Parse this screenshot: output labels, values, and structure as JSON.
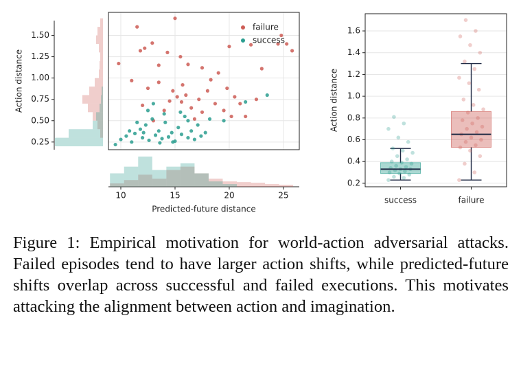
{
  "chart_data": [
    {
      "type": "scatter",
      "xlabel": "Predicted-future distance",
      "ylabel": "Action distance",
      "xlim": [
        8.86,
        26.46
      ],
      "ylim": [
        0.16,
        1.77
      ],
      "xticks": [
        10,
        15,
        20,
        25
      ],
      "yticks": [
        0.25,
        {
          "value": 0.5,
          "label": "0.50"
        },
        0.75,
        {
          "value": 1.0,
          "label": "1.00"
        },
        1.25,
        {
          "value": 1.5,
          "label": "1.50"
        }
      ],
      "grid": true,
      "legend": "upper right",
      "series": [
        {
          "name": "failure",
          "color": "#cd5c55",
          "x": [
            9.8,
            11.5,
            11.8,
            12.2,
            12.9,
            13.5,
            14.3,
            15.0,
            15.5,
            16.2,
            17.5,
            19.0,
            20.0,
            22.0,
            23.0,
            24.5,
            25.8,
            25.3,
            24.8,
            11.0,
            12.5,
            13.5,
            14.8,
            15.2,
            15.6,
            16.0,
            16.5,
            17.2,
            18.0,
            18.7,
            19.5,
            20.5,
            21.5,
            22.5,
            17.5,
            14.0,
            13.0,
            12.0,
            16.8,
            15.7,
            18.3,
            19.8,
            21.0,
            14.5,
            20.2
          ],
          "values": [
            1.17,
            1.6,
            1.32,
            1.35,
            1.41,
            1.15,
            1.3,
            1.7,
            1.25,
            1.16,
            1.12,
            1.06,
            1.37,
            1.39,
            1.11,
            1.4,
            1.32,
            1.4,
            1.5,
            0.97,
            0.88,
            0.95,
            0.85,
            0.78,
            0.72,
            0.8,
            0.65,
            0.75,
            0.85,
            0.7,
            0.62,
            0.78,
            0.55,
            0.75,
            0.6,
            0.62,
            0.5,
            0.68,
            0.52,
            0.92,
            0.98,
            0.88,
            0.7,
            0.73,
            0.55
          ],
          "x_hist": {
            "bins": [
              9,
              10.3,
              11.6,
              12.9,
              14.2,
              15.5,
              16.8,
              18.1,
              19.4,
              20.7,
              22.0,
              23.3,
              24.6,
              25.9
            ],
            "counts": [
              5,
              10,
              18,
              12,
              25,
              30,
              20,
              12,
              8,
              7,
              6,
              4,
              3
            ]
          },
          "y_hist": {
            "bins": [
              0.3,
              0.4,
              0.5,
              0.6,
              0.7,
              0.8,
              0.9,
              1.0,
              1.1,
              1.2,
              1.3,
              1.4,
              1.5,
              1.6,
              1.7
            ],
            "counts": [
              4,
              8,
              15,
              22,
              30,
              20,
              12,
              6,
              5,
              4,
              6,
              10,
              8,
              4
            ]
          }
        },
        {
          "name": "success",
          "color": "#2a9d8f",
          "x": [
            9.5,
            10.0,
            10.5,
            11.0,
            11.3,
            11.8,
            12.0,
            12.3,
            12.6,
            12.9,
            13.2,
            13.5,
            13.8,
            14.1,
            14.4,
            14.7,
            15.0,
            15.3,
            15.6,
            15.9,
            16.2,
            16.5,
            16.8,
            17.1,
            17.4,
            17.8,
            18.2,
            12.5,
            13.0,
            14.0,
            15.5,
            16.2,
            11.5,
            10.8,
            19.5,
            23.5,
            21.5,
            14.8,
            13.6,
            12.1
          ],
          "values": [
            0.22,
            0.28,
            0.32,
            0.25,
            0.35,
            0.4,
            0.3,
            0.45,
            0.27,
            0.52,
            0.33,
            0.38,
            0.29,
            0.48,
            0.31,
            0.36,
            0.26,
            0.42,
            0.34,
            0.55,
            0.3,
            0.38,
            0.28,
            0.45,
            0.32,
            0.36,
            0.52,
            0.62,
            0.7,
            0.58,
            0.6,
            0.5,
            0.48,
            0.38,
            0.5,
            0.8,
            0.72,
            0.25,
            0.24,
            0.36
          ],
          "x_hist": {
            "bins": [
              9,
              10.3,
              11.6,
              12.9,
              14.2,
              15.5,
              16.8,
              18.1,
              19.4,
              20.7
            ],
            "counts": [
              20,
              30,
              45,
              25,
              30,
              35,
              20,
              8,
              4
            ]
          },
          "y_hist": {
            "bins": [
              0.2,
              0.3,
              0.4,
              0.5,
              0.6,
              0.7,
              0.8,
              0.9
            ],
            "counts": [
              70,
              50,
              15,
              10,
              5,
              3,
              2
            ]
          }
        }
      ]
    },
    {
      "type": "box",
      "ylabel": "Action distance",
      "categories": [
        "success",
        "failure"
      ],
      "ylim": [
        0.168,
        1.758
      ],
      "yticks": [
        0.2,
        0.4,
        0.6,
        0.8,
        {
          "value": 1.0,
          "label": "1.0"
        },
        1.2,
        1.4,
        1.6
      ],
      "grid": true,
      "colors": [
        "#2a9d8f",
        "#cd5c55"
      ],
      "median_color": "#1f2a44",
      "boxes": [
        {
          "whislo": 0.23,
          "q1": 0.29,
          "median": 0.33,
          "q3": 0.39,
          "whishi": 0.52,
          "points": [
            0.23,
            0.25,
            0.26,
            0.28,
            0.29,
            0.3,
            0.31,
            0.32,
            0.33,
            0.33,
            0.34,
            0.35,
            0.36,
            0.38,
            0.39,
            0.4,
            0.42,
            0.45,
            0.48,
            0.5,
            0.52,
            0.58,
            0.62,
            0.7,
            0.75,
            0.81
          ]
        },
        {
          "whislo": 0.23,
          "q1": 0.53,
          "median": 0.65,
          "q3": 0.86,
          "whishi": 1.3,
          "points": [
            0.23,
            0.3,
            0.38,
            0.45,
            0.5,
            0.53,
            0.55,
            0.58,
            0.6,
            0.62,
            0.65,
            0.67,
            0.7,
            0.72,
            0.75,
            0.78,
            0.8,
            0.85,
            0.88,
            0.92,
            0.97,
            1.06,
            1.12,
            1.17,
            1.25,
            1.32,
            1.4,
            1.47,
            1.55,
            1.6,
            1.7
          ]
        }
      ]
    }
  ],
  "caption": "Figure 1: Empirical motivation for world-action adversarial attacks. Failed episodes tend to have larger action shifts, while predicted-future shifts overlap across successful and failed executions. This motivates attacking the alignment between action and imagination."
}
